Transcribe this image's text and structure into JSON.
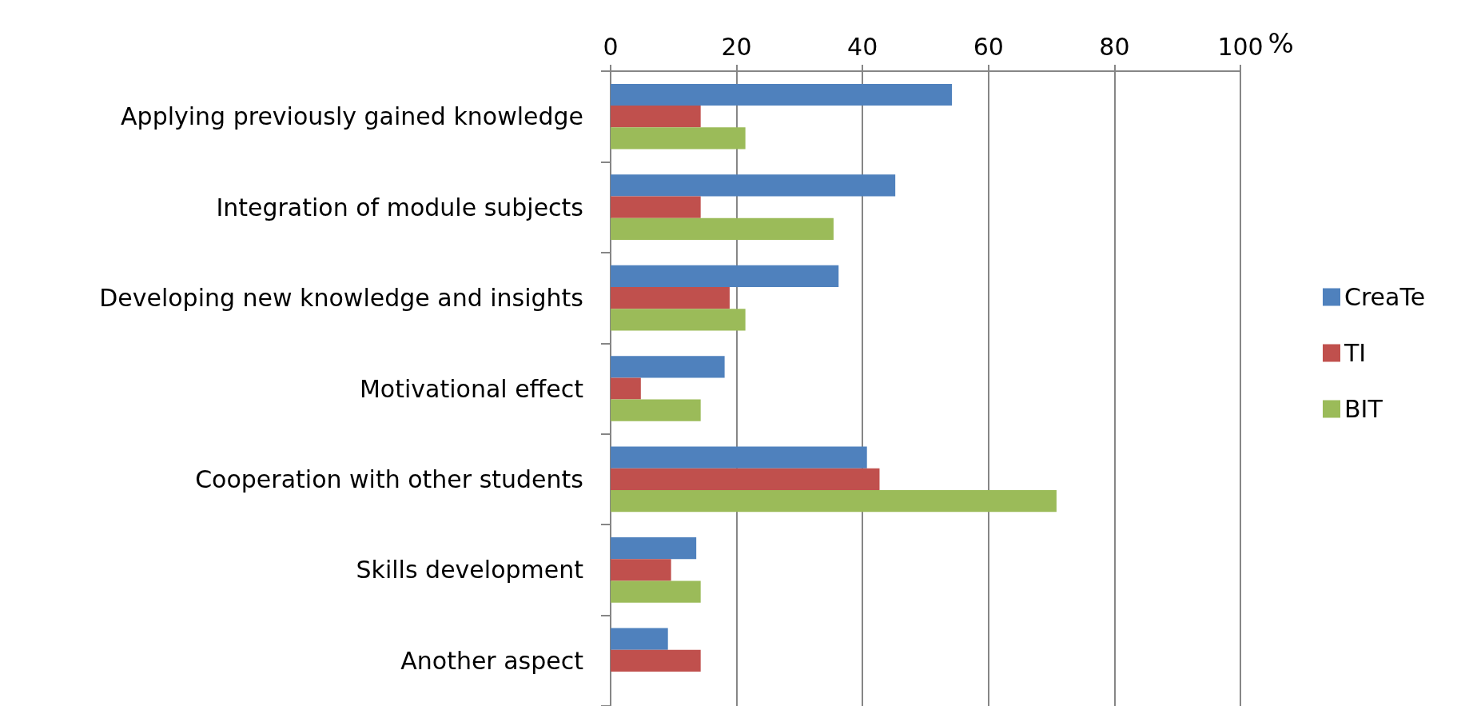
{
  "chart_data": {
    "type": "bar",
    "orientation": "horizontal",
    "xlabel": "%",
    "categories": [
      "Applying previously gained knowledge",
      "Integration of module subjects",
      "Developing new knowledge and insights",
      "Motivational effect",
      "Cooperation with other students",
      "Skills development",
      "Another aspect"
    ],
    "series": [
      {
        "name": "CreaTe",
        "color": "#4f81bd",
        "values": [
          54.2,
          45.2,
          36.2,
          18.1,
          40.7,
          13.6,
          9.1
        ]
      },
      {
        "name": "TI",
        "color": "#c0504d",
        "values": [
          14.3,
          14.3,
          18.9,
          4.8,
          42.7,
          9.6,
          14.3
        ]
      },
      {
        "name": "BIT",
        "color": "#9bbb59",
        "values": [
          21.4,
          35.4,
          21.4,
          14.3,
          70.8,
          14.3,
          0
        ]
      }
    ],
    "xlim": [
      0,
      100
    ],
    "xticks": [
      0,
      20,
      40,
      60,
      80,
      100
    ],
    "grid": "x",
    "legend": "right"
  }
}
